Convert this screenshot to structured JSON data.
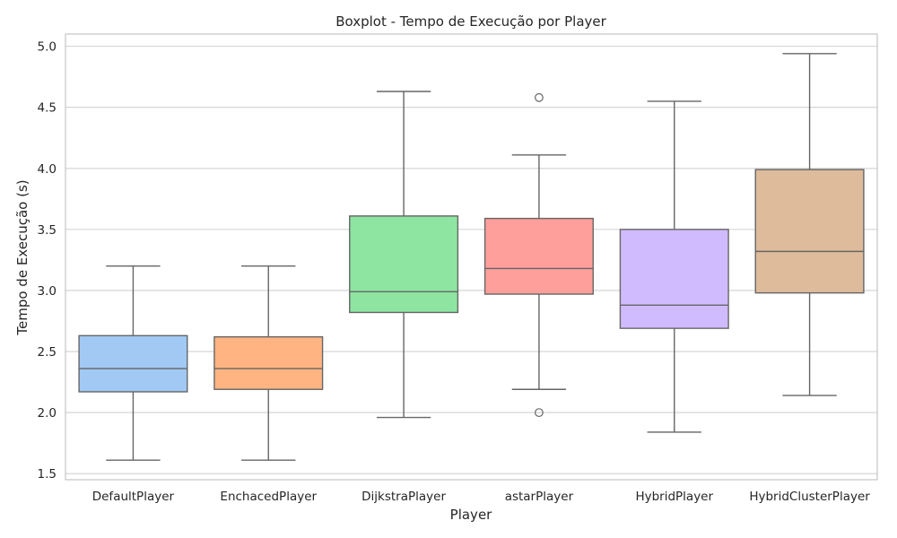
{
  "chart_data": {
    "type": "boxplot",
    "title": "Boxplot - Tempo de Execução por Player",
    "xlabel": "Player",
    "ylabel": "Tempo de Execução (s)",
    "ylim": [
      1.45,
      5.1
    ],
    "yticks": [
      "1.5",
      "2.0",
      "2.5",
      "3.0",
      "3.5",
      "4.0",
      "4.5",
      "5.0"
    ],
    "grid": true,
    "categories": [
      "DefaultPlayer",
      "EnchacedPlayer",
      "DijkstraPlayer",
      "astarPlayer",
      "HybridPlayer",
      "HybridClusterPlayer"
    ],
    "colors": [
      "#a1c9f4",
      "#ffb482",
      "#8de5a1",
      "#ff9f9b",
      "#d0bbff",
      "#debb9b"
    ],
    "boxes": [
      {
        "category": "DefaultPlayer",
        "whisker_low": 1.61,
        "q1": 2.17,
        "median": 2.36,
        "q3": 2.63,
        "whisker_high": 3.2,
        "outliers": []
      },
      {
        "category": "EnchacedPlayer",
        "whisker_low": 1.61,
        "q1": 2.19,
        "median": 2.36,
        "q3": 2.62,
        "whisker_high": 3.2,
        "outliers": []
      },
      {
        "category": "DijkstraPlayer",
        "whisker_low": 1.96,
        "q1": 2.82,
        "median": 2.99,
        "q3": 3.61,
        "whisker_high": 4.63,
        "outliers": []
      },
      {
        "category": "astarPlayer",
        "whisker_low": 2.19,
        "q1": 2.97,
        "median": 3.18,
        "q3": 3.59,
        "whisker_high": 4.11,
        "outliers": [
          4.58,
          2.0
        ]
      },
      {
        "category": "HybridPlayer",
        "whisker_low": 1.84,
        "q1": 2.69,
        "median": 2.88,
        "q3": 3.5,
        "whisker_high": 4.55,
        "outliers": []
      },
      {
        "category": "HybridClusterPlayer",
        "whisker_low": 2.14,
        "q1": 2.98,
        "median": 3.32,
        "q3": 3.99,
        "whisker_high": 4.94,
        "outliers": []
      }
    ]
  }
}
